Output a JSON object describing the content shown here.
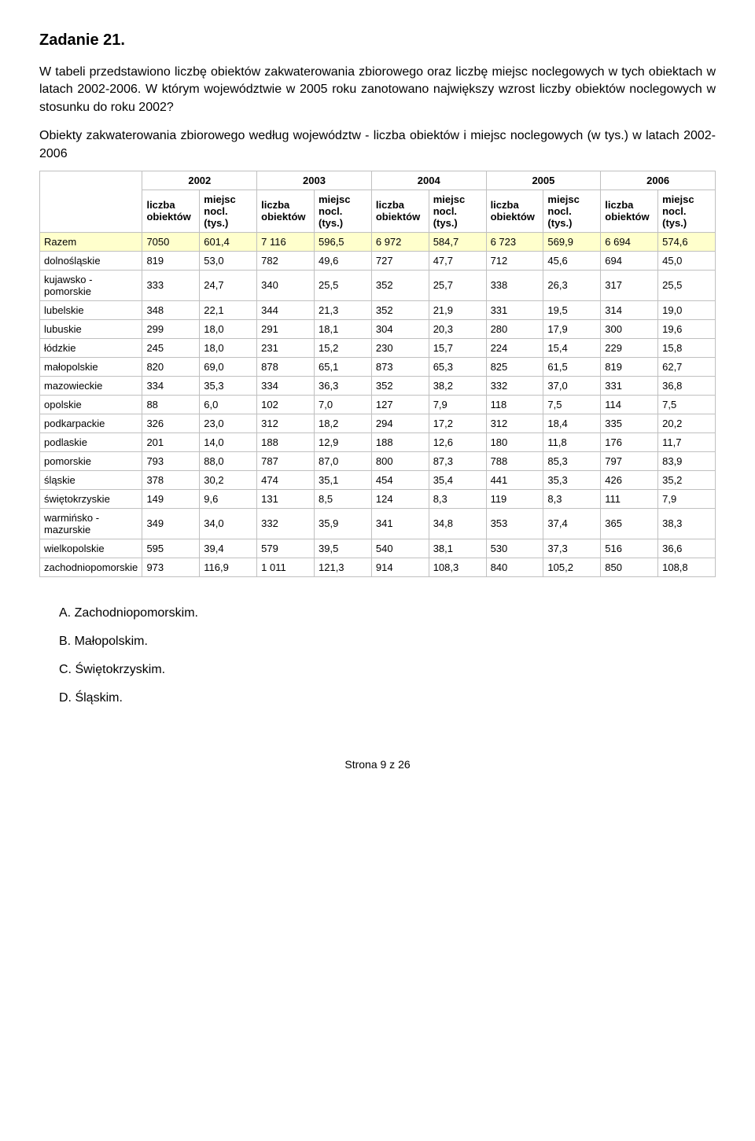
{
  "title": "Zadanie 21.",
  "paragraph1": "W tabeli przedstawiono liczbę obiektów zakwaterowania zbiorowego oraz liczbę miejsc noclegowych w tych obiektach w latach 2002-2006. W którym województwie w 2005 roku zanotowano największy wzrost liczby obiektów noclegowych w stosunku do roku 2002?",
  "caption": "Obiekty zakwaterowania zbiorowego według województw - liczba obiektów i miejsc noclegowych (w tys.) w latach 2002-2006",
  "table": {
    "years": [
      "2002",
      "2003",
      "2004",
      "2005",
      "2006"
    ],
    "subheaders": {
      "obj": "liczba obiektów",
      "nocl": "miejsc nocl. (tys.)"
    },
    "rows": [
      {
        "name": "Razem",
        "class": "razem-row",
        "cells": [
          "7050",
          "601,4",
          "7 116",
          "596,5",
          "6 972",
          "584,7",
          "6 723",
          "569,9",
          "6 694",
          "574,6"
        ]
      },
      {
        "name": "dolnośląskie",
        "cells": [
          "819",
          "53,0",
          "782",
          "49,6",
          "727",
          "47,7",
          "712",
          "45,6",
          "694",
          "45,0"
        ]
      },
      {
        "name": "kujawsko - pomorskie",
        "cells": [
          "333",
          "24,7",
          "340",
          "25,5",
          "352",
          "25,7",
          "338",
          "26,3",
          "317",
          "25,5"
        ]
      },
      {
        "name": "lubelskie",
        "cells": [
          "348",
          "22,1",
          "344",
          "21,3",
          "352",
          "21,9",
          "331",
          "19,5",
          "314",
          "19,0"
        ]
      },
      {
        "name": "lubuskie",
        "cells": [
          "299",
          "18,0",
          "291",
          "18,1",
          "304",
          "20,3",
          "280",
          "17,9",
          "300",
          "19,6"
        ]
      },
      {
        "name": "łódzkie",
        "cells": [
          "245",
          "18,0",
          "231",
          "15,2",
          "230",
          "15,7",
          "224",
          "15,4",
          "229",
          "15,8"
        ]
      },
      {
        "name": "małopolskie",
        "cells": [
          "820",
          "69,0",
          "878",
          "65,1",
          "873",
          "65,3",
          "825",
          "61,5",
          "819",
          "62,7"
        ]
      },
      {
        "name": "mazowieckie",
        "cells": [
          "334",
          "35,3",
          "334",
          "36,3",
          "352",
          "38,2",
          "332",
          "37,0",
          "331",
          "36,8"
        ]
      },
      {
        "name": "opolskie",
        "cells": [
          "88",
          "6,0",
          "102",
          "7,0",
          "127",
          "7,9",
          "118",
          "7,5",
          "114",
          "7,5"
        ]
      },
      {
        "name": "podkarpackie",
        "cells": [
          "326",
          "23,0",
          "312",
          "18,2",
          "294",
          "17,2",
          "312",
          "18,4",
          "335",
          "20,2"
        ]
      },
      {
        "name": "podlaskie",
        "cells": [
          "201",
          "14,0",
          "188",
          "12,9",
          "188",
          "12,6",
          "180",
          "11,8",
          "176",
          "11,7"
        ]
      },
      {
        "name": "pomorskie",
        "cells": [
          "793",
          "88,0",
          "787",
          "87,0",
          "800",
          "87,3",
          "788",
          "85,3",
          "797",
          "83,9"
        ]
      },
      {
        "name": "śląskie",
        "cells": [
          "378",
          "30,2",
          "474",
          "35,1",
          "454",
          "35,4",
          "441",
          "35,3",
          "426",
          "35,2"
        ]
      },
      {
        "name": "świętokrzyskie",
        "cells": [
          "149",
          "9,6",
          "131",
          "8,5",
          "124",
          "8,3",
          "119",
          "8,3",
          "111",
          "7,9"
        ]
      },
      {
        "name": "warmińsko - mazurskie",
        "cells": [
          "349",
          "34,0",
          "332",
          "35,9",
          "341",
          "34,8",
          "353",
          "37,4",
          "365",
          "38,3"
        ]
      },
      {
        "name": "wielkopolskie",
        "cells": [
          "595",
          "39,4",
          "579",
          "39,5",
          "540",
          "38,1",
          "530",
          "37,3",
          "516",
          "36,6"
        ]
      },
      {
        "name": "zachodniopomorskie",
        "cells": [
          "973",
          "116,9",
          "1 011",
          "121,3",
          "914",
          "108,3",
          "840",
          "105,2",
          "850",
          "108,8"
        ]
      }
    ]
  },
  "answers": [
    {
      "letter": "A.",
      "text": "Zachodniopomorskim."
    },
    {
      "letter": "B.",
      "text": "Małopolskim."
    },
    {
      "letter": "C.",
      "text": "Świętokrzyskim."
    },
    {
      "letter": "D.",
      "text": "Śląskim."
    }
  ],
  "footer": "Strona 9 z 26",
  "styling": {
    "razem_bg": "#ffffcc",
    "border_color": "#c0c0c0",
    "body_bg": "#ffffff",
    "text_color": "#000000",
    "title_fontsize": 20,
    "body_fontsize": 16,
    "table_fontsize": 13
  }
}
